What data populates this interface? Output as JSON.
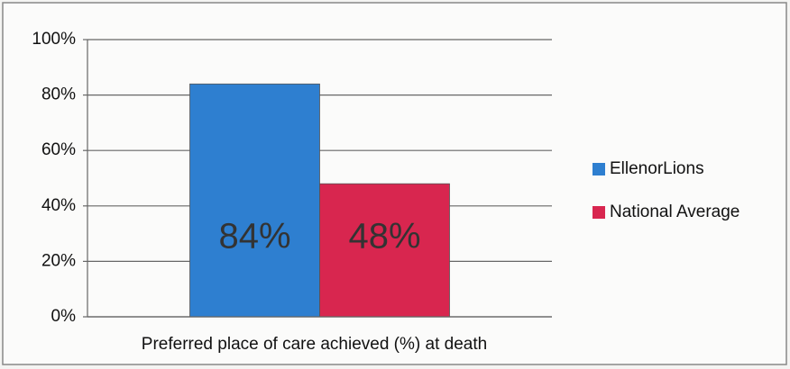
{
  "chart_data": {
    "type": "bar",
    "categories": [
      "Preferred place of care achieved (%) at death"
    ],
    "series": [
      {
        "name": "EllenorLions",
        "color": "#2e7fd0",
        "values": [
          84
        ],
        "value_labels": [
          "84%"
        ]
      },
      {
        "name": "National Average",
        "color": "#d8264f",
        "values": [
          48
        ],
        "value_labels": [
          "48%"
        ]
      }
    ],
    "ylim": [
      0,
      100
    ],
    "yticks": [
      {
        "value": 0,
        "label": "0%"
      },
      {
        "value": 20,
        "label": "20%"
      },
      {
        "value": 40,
        "label": "40%"
      },
      {
        "value": 60,
        "label": "60%"
      },
      {
        "value": 80,
        "label": "80%"
      },
      {
        "value": 100,
        "label": "100%"
      }
    ],
    "grid": true,
    "legend": "right"
  }
}
